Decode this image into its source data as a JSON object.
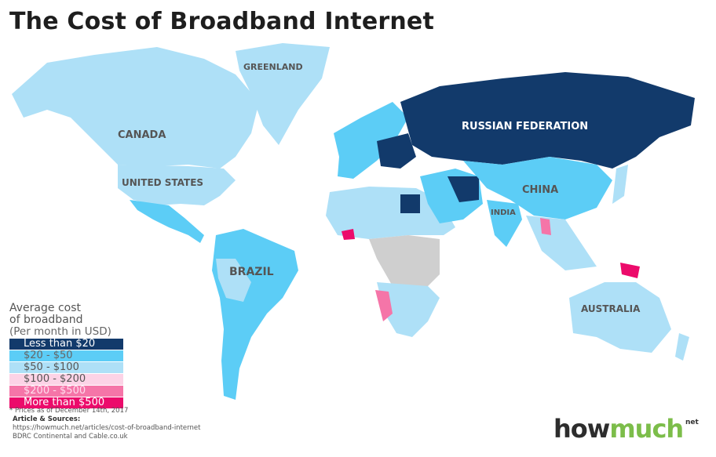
{
  "title": "The Cost of Broadband Internet",
  "map_labels": {
    "greenland": "GREENLAND",
    "canada": "CANADA",
    "united_states": "UNITED STATES",
    "russia": "RUSSIAN FEDERATION",
    "china": "CHINA",
    "india": "INDIA",
    "brazil": "BRAZIL",
    "australia": "AUSTRALIA"
  },
  "legend": {
    "title_line1": "Average cost",
    "title_line2": "of broadband",
    "subtitle": "(Per month in USD)",
    "items": [
      {
        "label": "Less than $20",
        "color": "#123a6b"
      },
      {
        "label": "$20 - $50",
        "color": "#5ccdf6"
      },
      {
        "label": "$50 - $100",
        "color": "#aee0f7"
      },
      {
        "label": "$100 - $200",
        "color": "#fcd3e6"
      },
      {
        "label": "$200 - $500",
        "color": "#f575a8"
      },
      {
        "label": "More than $500",
        "color": "#ec0b6b"
      }
    ],
    "no_data_color": "#cfcfcf"
  },
  "footer": {
    "note": "* Prices as of December 14th, 2017",
    "sources_label": "Article & Sources:",
    "source_url": "https://howmuch.net/articles/cost-of-broadband-internet",
    "source_2": "BDRC Continental and Cable.co.uk"
  },
  "logo": {
    "part1": "how",
    "part2": "much",
    "suffix": "net"
  }
}
